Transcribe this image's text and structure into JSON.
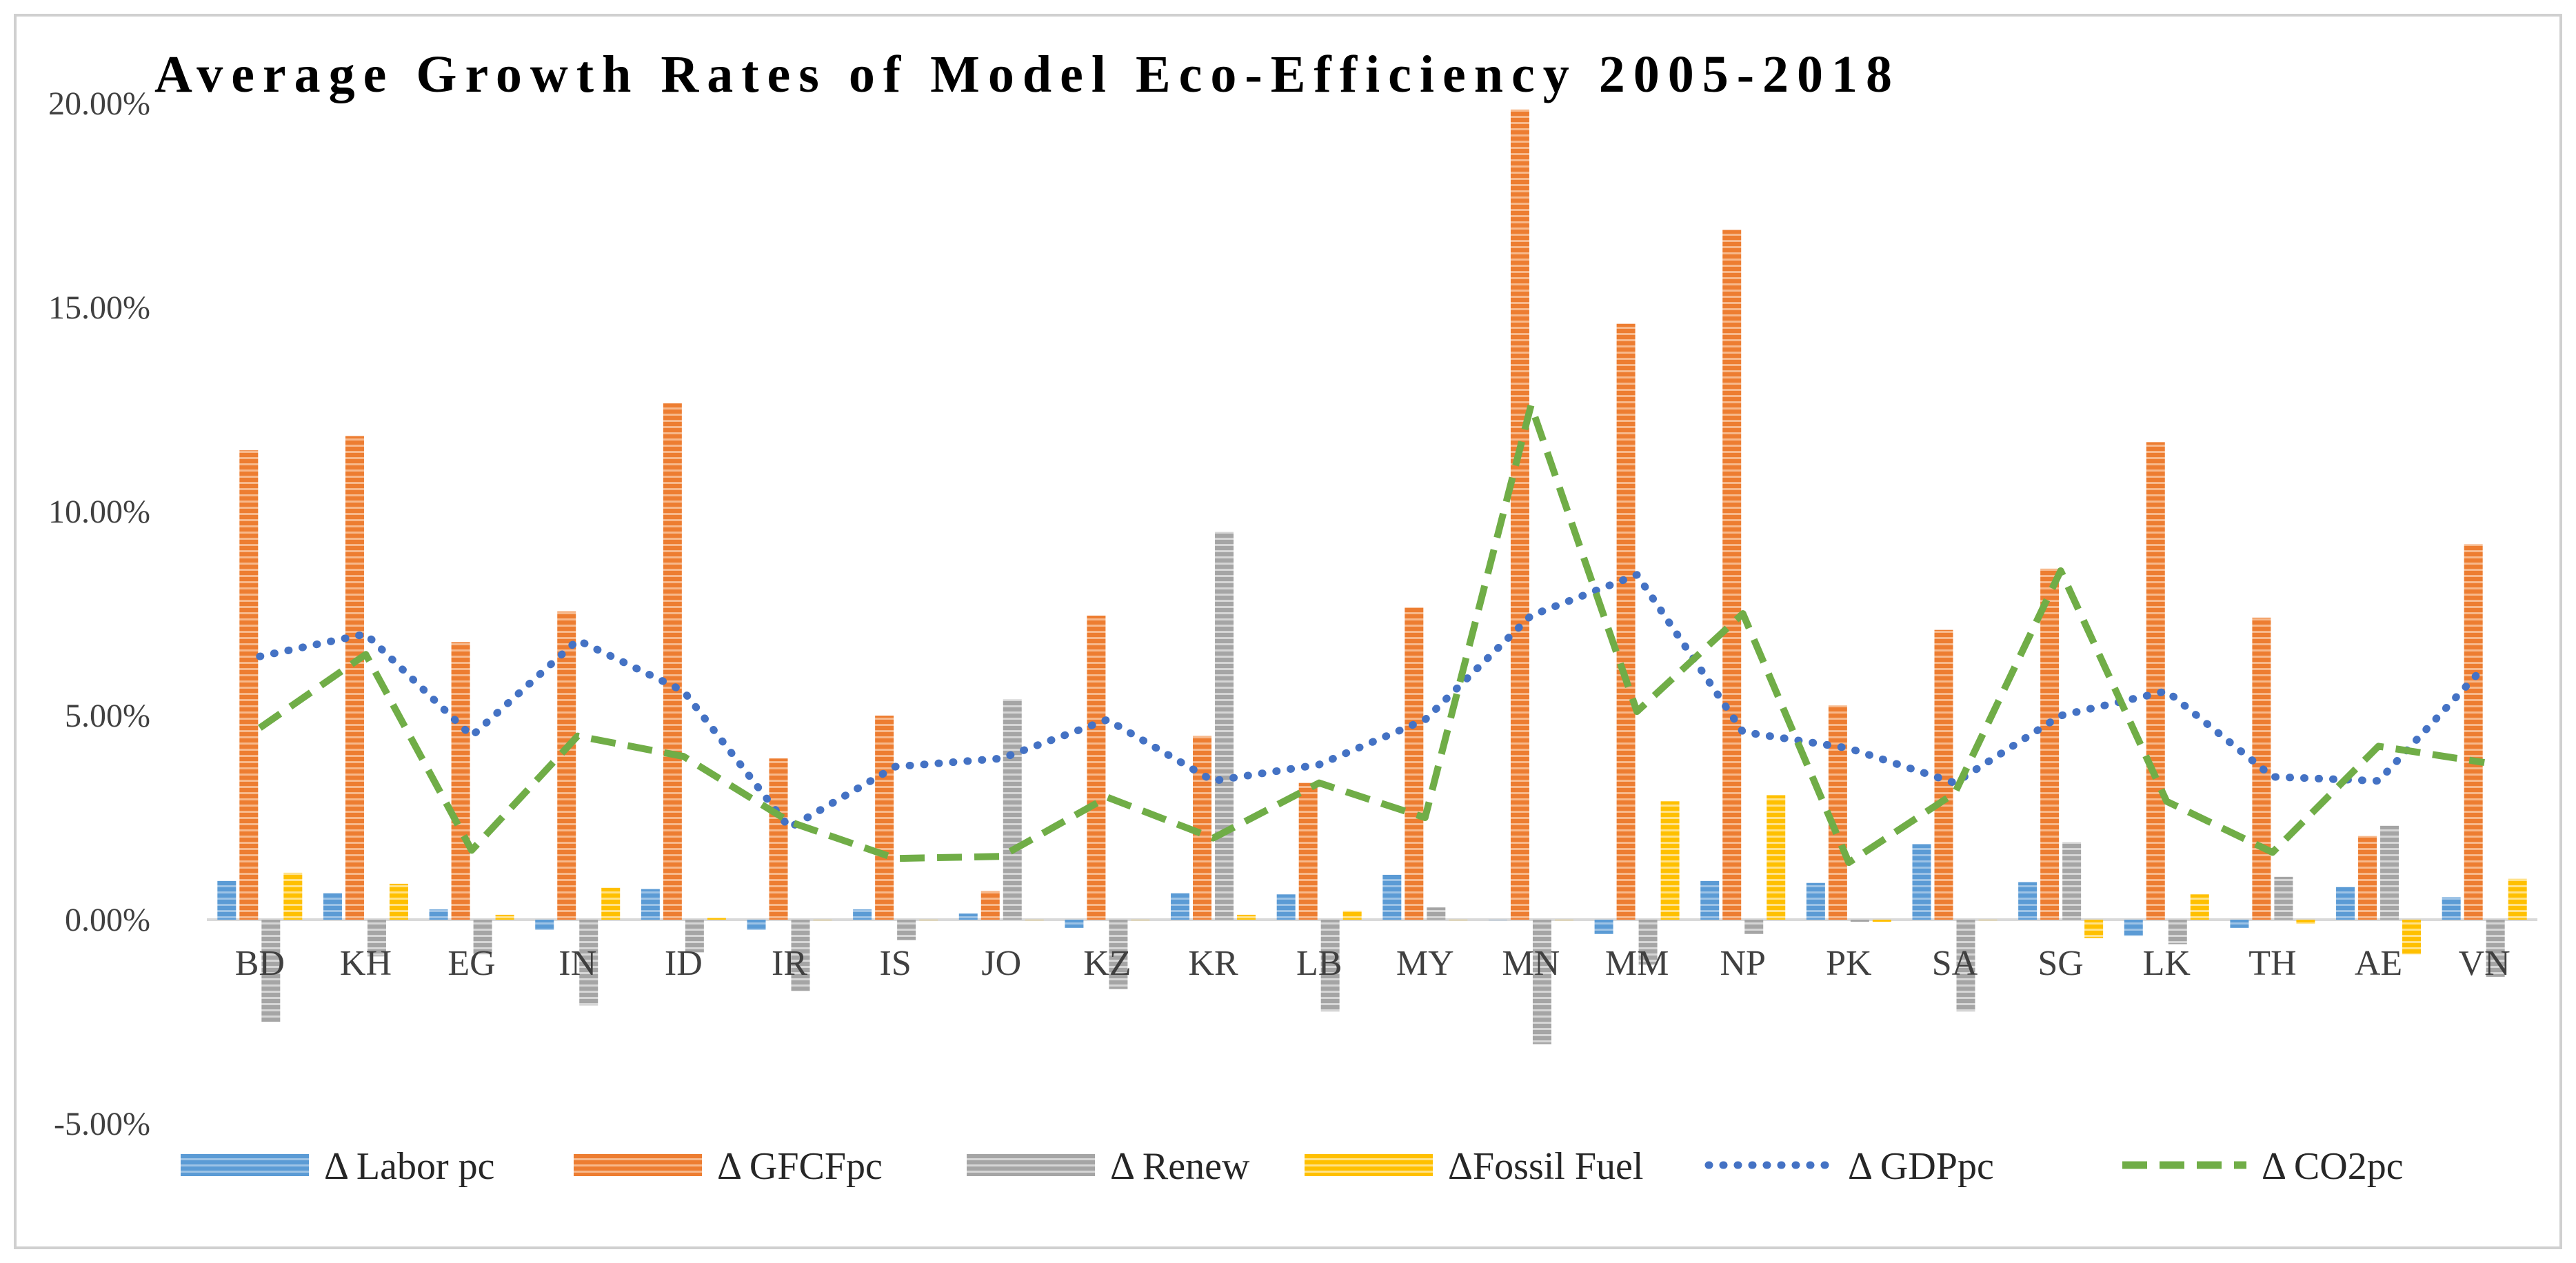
{
  "chart_data": {
    "type": "bar",
    "title": "Average Growth Rates of Model Eco-Efficiency 2005-2018",
    "xlabel": "",
    "ylabel": "",
    "ylim": [
      -5,
      20
    ],
    "yticks": [
      -5,
      0,
      5,
      10,
      15,
      20
    ],
    "ytick_labels": [
      "-5.00%",
      "0.00%",
      "5.00%",
      "10.00%",
      "15.00%",
      "20.00%"
    ],
    "categories": [
      "BD",
      "KH",
      "EG",
      "IN",
      "ID",
      "IR",
      "IS",
      "JO",
      "KZ",
      "KR",
      "LB",
      "MY",
      "MN",
      "MM",
      "NP",
      "PK",
      "SA",
      "SG",
      "LK",
      "TH",
      "AE",
      "VN"
    ],
    "series": [
      {
        "name": "Δ Labor pc",
        "kind": "bar",
        "color": "#5B9BD5",
        "values": [
          0.95,
          0.65,
          0.25,
          -0.25,
          0.75,
          -0.25,
          0.25,
          0.15,
          -0.2,
          0.65,
          0.62,
          1.1,
          0.0,
          -0.35,
          0.95,
          0.9,
          1.85,
          0.92,
          -0.4,
          -0.2,
          0.8,
          0.55
        ]
      },
      {
        "name": "Δ GFCFpc",
        "kind": "bar",
        "color": "#ED7D31",
        "values": [
          11.5,
          11.85,
          6.8,
          7.55,
          12.65,
          3.95,
          5.0,
          0.7,
          7.45,
          4.5,
          3.35,
          7.65,
          19.85,
          14.6,
          16.9,
          5.25,
          7.1,
          8.6,
          11.7,
          7.4,
          2.05,
          9.2
        ]
      },
      {
        "name": "Δ Renew",
        "kind": "bar",
        "color": "#A5A5A5",
        "values": [
          -2.5,
          -0.9,
          -0.85,
          -2.1,
          -0.8,
          -1.75,
          -0.5,
          5.4,
          -1.7,
          9.5,
          -2.25,
          0.3,
          -3.05,
          -1.1,
          -0.35,
          -0.05,
          -2.25,
          1.9,
          -0.6,
          1.05,
          2.3,
          -1.4
        ]
      },
      {
        "name": "ΔFossil Fuel",
        "kind": "bar",
        "color": "#FFC000",
        "values": [
          1.15,
          0.88,
          0.12,
          0.78,
          0.05,
          0.0,
          0.0,
          0.0,
          0.0,
          0.12,
          0.22,
          0.0,
          0.0,
          2.9,
          3.05,
          -0.05,
          0.0,
          -0.45,
          0.62,
          -0.1,
          -0.85,
          1.0
        ]
      },
      {
        "name": "Δ GDPpc",
        "kind": "line",
        "style": "dotted",
        "color": "#4472C4",
        "values": [
          6.45,
          7.0,
          4.5,
          6.85,
          5.6,
          2.25,
          3.75,
          3.95,
          4.9,
          3.4,
          3.8,
          4.9,
          7.45,
          8.45,
          4.6,
          4.2,
          3.35,
          5.0,
          5.6,
          3.5,
          3.4,
          6.2
        ]
      },
      {
        "name": "Δ CO2pc",
        "kind": "line",
        "style": "dashed",
        "color": "#70AD47",
        "values": [
          4.7,
          6.5,
          1.7,
          4.5,
          4.0,
          2.4,
          1.5,
          1.55,
          3.0,
          2.0,
          3.35,
          2.5,
          12.6,
          5.1,
          7.5,
          1.4,
          3.1,
          8.55,
          2.9,
          1.65,
          4.25,
          3.85
        ]
      }
    ],
    "grid": false,
    "legend": "bottom"
  }
}
